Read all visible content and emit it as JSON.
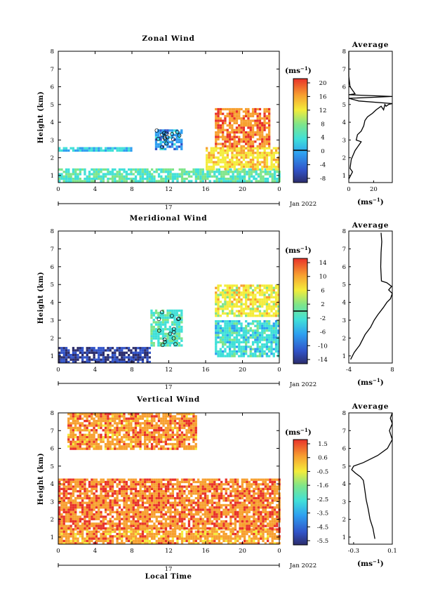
{
  "common": {
    "ylabel": "Height (km)",
    "xlabel": "Local Time",
    "date_label": "Jan 2022",
    "day_label": "17",
    "average_title": "Average",
    "unit": "(ms",
    "unit_exp": "−1"
  },
  "panels": [
    {
      "title": "Zonal Wind",
      "colorbar_ticks": [
        "20",
        "16",
        "12",
        "8",
        "4",
        "0",
        "-4",
        "-8"
      ],
      "profile_xticks": [
        "0",
        "20"
      ]
    },
    {
      "title": "Meridional Wind",
      "colorbar_ticks": [
        "14",
        "10",
        "6",
        "2",
        "-2",
        "-6",
        "-10",
        "-14"
      ],
      "profile_xticks": [
        "-4",
        "8"
      ]
    },
    {
      "title": "Vertical Wind",
      "colorbar_ticks": [
        "1.5",
        "0.6",
        "-0.5",
        "-1.6",
        "-2.5",
        "-3.5",
        "-4.5",
        "-5.5"
      ],
      "profile_xticks": [
        "-0.3",
        "0.1"
      ]
    }
  ],
  "chart_data": [
    {
      "type": "heatmap",
      "title": "Zonal Wind",
      "xlabel": "",
      "ylabel": "Height (km)",
      "x_ticks": [
        "0",
        "4",
        "8",
        "12",
        "16",
        "20",
        "0"
      ],
      "y_ticks": [
        "1",
        "2",
        "3",
        "4",
        "5",
        "6",
        "7",
        "8"
      ],
      "xlim": [
        0,
        24
      ],
      "ylim": [
        0.6,
        8
      ],
      "colorbar_range": [
        -10,
        22
      ],
      "zero_contour": true,
      "regions": [
        {
          "x": [
            0,
            24
          ],
          "y": [
            0.7,
            1.4
          ],
          "value": 6
        },
        {
          "x": [
            10.5,
            13.5
          ],
          "y": [
            2.5,
            3.6
          ],
          "value": 0
        },
        {
          "x": [
            16,
            24
          ],
          "y": [
            1.4,
            2.6
          ],
          "value": 13
        },
        {
          "x": [
            17,
            23
          ],
          "y": [
            2.6,
            4.8
          ],
          "value": 17
        },
        {
          "x": [
            0,
            8
          ],
          "y": [
            2.4,
            2.6
          ],
          "value": 2
        }
      ]
    },
    {
      "type": "line",
      "title": "Average",
      "xlabel": "(ms⁻¹)",
      "xlim": [
        0,
        35
      ],
      "ylim": [
        0.6,
        8
      ],
      "x_ticks": [
        "0",
        "20"
      ],
      "x": [
        0,
        3,
        1,
        2,
        5,
        8,
        10,
        6,
        7,
        10,
        12,
        13,
        15,
        19,
        22,
        26,
        28,
        29,
        30,
        32,
        35,
        8,
        0,
        35,
        0,
        5,
        1,
        0,
        0
      ],
      "y": [
        0.8,
        1.2,
        1.4,
        1.9,
        2.4,
        2.7,
        2.9,
        3.0,
        3.3,
        3.5,
        3.8,
        4.1,
        4.3,
        4.5,
        4.7,
        4.9,
        4.7,
        5.0,
        4.9,
        5.0,
        5.05,
        5.2,
        5.35,
        5.45,
        5.55,
        5.6,
        6.0,
        6.6,
        8.0
      ]
    },
    {
      "type": "heatmap",
      "title": "Meridional Wind",
      "xlabel": "",
      "ylabel": "Height (km)",
      "x_ticks": [
        "0",
        "4",
        "8",
        "12",
        "16",
        "20",
        "0"
      ],
      "y_ticks": [
        "1",
        "2",
        "3",
        "4",
        "5",
        "6",
        "7",
        "8"
      ],
      "xlim": [
        0,
        24
      ],
      "ylim": [
        0.6,
        8
      ],
      "colorbar_range": [
        -16,
        16
      ],
      "zero_contour": true,
      "regions": [
        {
          "x": [
            0,
            10
          ],
          "y": [
            0.7,
            1.5
          ],
          "value": -12
        },
        {
          "x": [
            10,
            13.5
          ],
          "y": [
            1.6,
            3.6
          ],
          "value": -1
        },
        {
          "x": [
            17,
            24
          ],
          "y": [
            3.2,
            5.0
          ],
          "value": 6
        },
        {
          "x": [
            17,
            24
          ],
          "y": [
            1.0,
            3.0
          ],
          "value": -2
        }
      ]
    },
    {
      "type": "line",
      "title": "Average",
      "xlabel": "(ms⁻¹)",
      "xlim": [
        -4,
        8
      ],
      "ylim": [
        0.6,
        8
      ],
      "x_ticks": [
        "-4",
        "8"
      ],
      "x": [
        -3.5,
        -2.5,
        -1.0,
        0.5,
        2.0,
        3.0,
        4.0,
        5.5,
        6.5,
        7.5,
        8.0,
        7.0,
        7.8,
        6.5,
        5.0,
        4.8,
        4.9,
        5.1,
        4.9
      ],
      "y": [
        0.8,
        1.2,
        1.6,
        2.2,
        2.6,
        3.0,
        3.3,
        3.7,
        4.0,
        4.2,
        4.5,
        4.7,
        4.9,
        5.1,
        5.2,
        6.0,
        6.8,
        7.4,
        7.9
      ]
    },
    {
      "type": "heatmap",
      "title": "Vertical Wind",
      "xlabel": "Local Time",
      "ylabel": "Height (km)",
      "x_ticks": [
        "0",
        "4",
        "8",
        "12",
        "16",
        "20",
        "0"
      ],
      "y_ticks": [
        "1",
        "2",
        "3",
        "4",
        "5",
        "6",
        "7",
        "8"
      ],
      "xlim": [
        0,
        24
      ],
      "ylim": [
        0.6,
        8
      ],
      "colorbar_range": [
        -6,
        2
      ],
      "regions": [
        {
          "x": [
            0,
            24
          ],
          "y": [
            0.7,
            1.5
          ],
          "value": 0.5
        },
        {
          "x": [
            0,
            24
          ],
          "y": [
            1.5,
            4.3
          ],
          "value": 0.8
        },
        {
          "x": [
            1,
            15
          ],
          "y": [
            6.0,
            8.0
          ],
          "value": 0.6
        }
      ]
    },
    {
      "type": "line",
      "title": "Average",
      "xlabel": "(ms⁻¹)",
      "xlim": [
        -0.35,
        0.1
      ],
      "ylim": [
        0.6,
        8
      ],
      "x_ticks": [
        "-0.3",
        "0.1"
      ],
      "x": [
        -0.08,
        -0.1,
        -0.13,
        -0.15,
        -0.17,
        -0.18,
        -0.19,
        -0.2,
        -0.23,
        -0.28,
        -0.32,
        -0.3,
        -0.2,
        -0.05,
        0.05,
        0.1,
        0.07,
        0.1,
        0.08,
        0.1
      ],
      "y": [
        0.9,
        1.5,
        2.0,
        2.6,
        3.1,
        3.5,
        3.9,
        4.2,
        4.4,
        4.6,
        4.8,
        5.0,
        5.2,
        5.6,
        6.0,
        6.5,
        7.0,
        7.4,
        7.7,
        8.0
      ]
    }
  ]
}
